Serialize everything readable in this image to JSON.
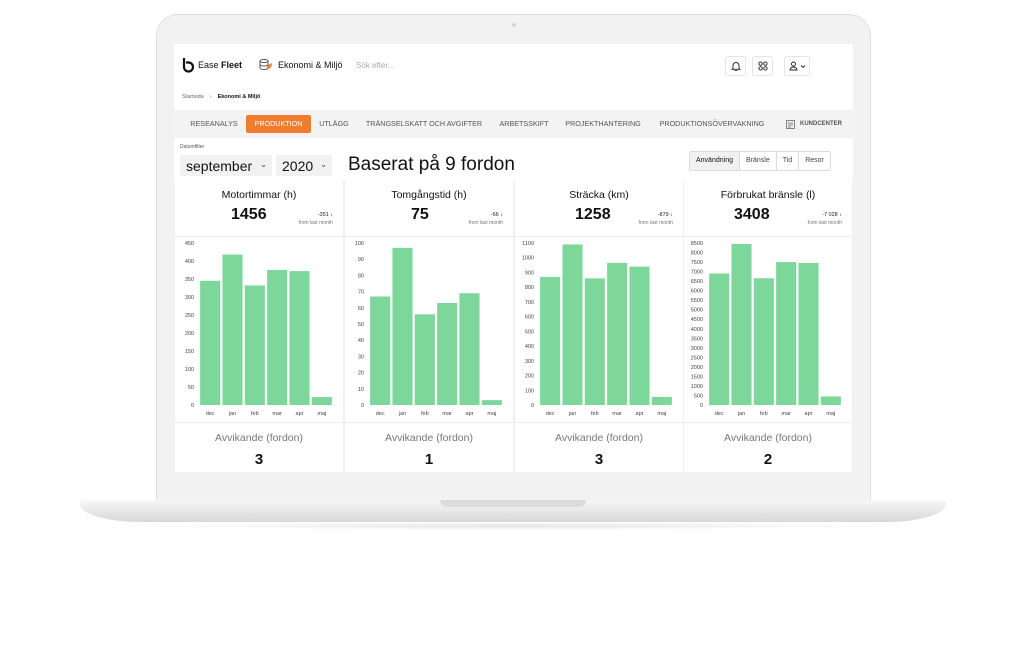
{
  "header": {
    "logo_text_a": "Ease ",
    "logo_text_b": "Fleet",
    "module_name": "Ekonomi & Miljö",
    "search_placeholder": "Sök efter..."
  },
  "breadcrumb": {
    "home": "Startsida",
    "current": "Ekonomi & Miljö"
  },
  "nav": {
    "items": [
      "RESEANALYS",
      "PRODUKTION",
      "UTLÄGG",
      "TRÄNGSELSKATT OCH AVGIFTER",
      "ARBETSSKIFT",
      "PROJEKTHANTERING",
      "PRODUKTIONSÖVERVAKNING"
    ],
    "active": "PRODUKTION",
    "kundcenter": "KUNDCENTER"
  },
  "filters": {
    "label": "Datumfilter",
    "month": "september",
    "year": "2020"
  },
  "title": "Baserat på 9 fordon",
  "segments": {
    "items": [
      "Användning",
      "Bränsle",
      "Tid",
      "Resor"
    ],
    "active": "Användning"
  },
  "colors": {
    "accent": "#f07d2e",
    "bar": "#7dd79b"
  },
  "cards": [
    {
      "title": "Motortimmar (h)",
      "value": "1456",
      "delta": "-351 ↓",
      "delta_sub": "from last month",
      "dev_label": "Avvikande (fordon)",
      "dev_value": "3"
    },
    {
      "title": "Tomgångstid (h)",
      "value": "75",
      "delta": "-66 ↓",
      "delta_sub": "from last month",
      "dev_label": "Avvikande (fordon)",
      "dev_value": "1"
    },
    {
      "title": "Sträcka (km)",
      "value": "1258",
      "delta": "-879 ↓",
      "delta_sub": "from last month",
      "dev_label": "Avvikande (fordon)",
      "dev_value": "3"
    },
    {
      "title": "Förbrukat bränsle (l)",
      "value": "3408",
      "delta": "-7 028 ↓",
      "delta_sub": "from last month",
      "dev_label": "Avvikande (fordon)",
      "dev_value": "2"
    }
  ],
  "chart_data": [
    {
      "type": "bar",
      "categories": [
        "dec",
        "jan",
        "feb",
        "mar",
        "apr",
        "maj"
      ],
      "values": [
        345,
        418,
        332,
        375,
        372,
        22
      ],
      "ylim": [
        0,
        450
      ],
      "yticks": [
        0,
        50,
        100,
        150,
        200,
        250,
        300,
        350,
        400,
        450
      ]
    },
    {
      "type": "bar",
      "categories": [
        "dec",
        "jan",
        "feb",
        "mar",
        "apr",
        "maj"
      ],
      "values": [
        67,
        97,
        56,
        63,
        69,
        3
      ],
      "ylim": [
        0,
        100
      ],
      "yticks": [
        0,
        10,
        20,
        30,
        40,
        50,
        60,
        70,
        80,
        90,
        100
      ]
    },
    {
      "type": "bar",
      "categories": [
        "dec",
        "jan",
        "feb",
        "mar",
        "apr",
        "maj"
      ],
      "values": [
        870,
        1090,
        860,
        965,
        940,
        55
      ],
      "ylim": [
        0,
        1100
      ],
      "yticks": [
        0,
        100,
        200,
        300,
        400,
        500,
        600,
        700,
        800,
        900,
        1000,
        1100
      ]
    },
    {
      "type": "bar",
      "categories": [
        "dec",
        "jan",
        "feb",
        "mar",
        "apr",
        "maj"
      ],
      "values": [
        6900,
        8450,
        6650,
        7500,
        7450,
        450
      ],
      "ylim": [
        0,
        8500
      ],
      "yticks": [
        0,
        500,
        1000,
        1500,
        2000,
        2500,
        3000,
        3500,
        4000,
        4500,
        5000,
        5500,
        6000,
        6500,
        7000,
        7500,
        8000,
        8500
      ]
    }
  ]
}
